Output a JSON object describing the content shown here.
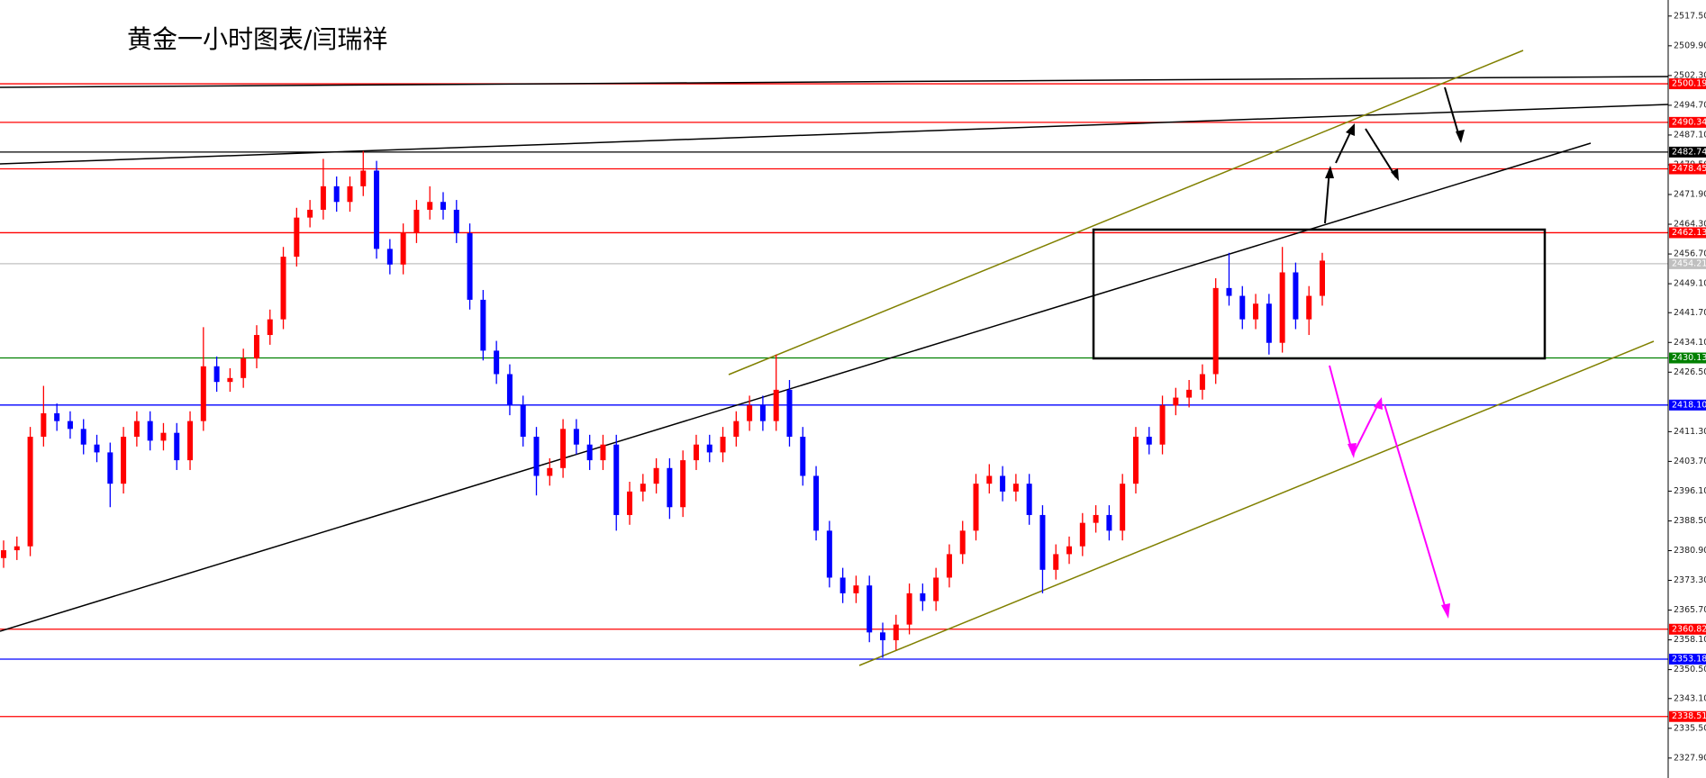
{
  "chart_data": {
    "type": "candlestick",
    "title": "黄金一小时图表/闫瑞祥",
    "up_color": "#ff0000",
    "down_color": "#0000ff",
    "ylim": [
      2322.8,
      2521.6
    ],
    "yticks": [
      {
        "value": 2517.5,
        "label": "2517.50"
      },
      {
        "value": 2509.9,
        "label": "2509.90"
      },
      {
        "value": 2502.3,
        "label": "2502.30"
      },
      {
        "value": 2494.7,
        "label": "2494.70"
      },
      {
        "value": 2487.1,
        "label": "2487.10"
      },
      {
        "value": 2479.5,
        "label": "2479.50"
      },
      {
        "value": 2471.9,
        "label": "2471.90"
      },
      {
        "value": 2464.3,
        "label": "2464.30"
      },
      {
        "value": 2456.7,
        "label": "2456.70"
      },
      {
        "value": 2449.1,
        "label": "2449.10"
      },
      {
        "value": 2441.7,
        "label": "2441.70"
      },
      {
        "value": 2434.1,
        "label": "2434.10"
      },
      {
        "value": 2426.5,
        "label": "2426.50"
      },
      {
        "value": 2411.3,
        "label": "2411.30"
      },
      {
        "value": 2403.7,
        "label": "2403.70"
      },
      {
        "value": 2396.1,
        "label": "2396.10"
      },
      {
        "value": 2388.5,
        "label": "2388.50"
      },
      {
        "value": 2380.9,
        "label": "2380.90"
      },
      {
        "value": 2373.3,
        "label": "2373.30"
      },
      {
        "value": 2365.7,
        "label": "2365.70"
      },
      {
        "value": 2358.1,
        "label": "2358.10"
      },
      {
        "value": 2350.5,
        "label": "2350.50"
      },
      {
        "value": 2343.1,
        "label": "2343.10"
      },
      {
        "value": 2335.5,
        "label": "2335.50"
      },
      {
        "value": 2327.9,
        "label": "2327.90"
      }
    ],
    "levels": [
      {
        "value": 2500.19,
        "label": "2500.19",
        "color": "#ff0000"
      },
      {
        "value": 2490.34,
        "label": "2490.34",
        "color": "#ff0000"
      },
      {
        "value": 2482.74,
        "label": "2482.74",
        "color": "#000000"
      },
      {
        "value": 2478.45,
        "label": "2478.45",
        "color": "#ff0000"
      },
      {
        "value": 2462.13,
        "label": "2462.13",
        "color": "#ff0000"
      },
      {
        "value": 2454.21,
        "label": "2454.21",
        "color": "#c0c0c0"
      },
      {
        "value": 2430.13,
        "label": "2430.13",
        "color": "#008000"
      },
      {
        "value": 2418.1,
        "label": "2418.10",
        "color": "#0000ff"
      },
      {
        "value": 2360.82,
        "label": "2360.82",
        "color": "#ff0000"
      },
      {
        "value": 2353.18,
        "label": "2353.18",
        "color": "#0000ff"
      },
      {
        "value": 2338.51,
        "label": "2338.51",
        "color": "#ff0000"
      }
    ],
    "open": [
      2379,
      2381,
      2382,
      2410,
      2416,
      2414,
      2412,
      2408,
      2406,
      2398,
      2410,
      2414,
      2409,
      2411,
      2404,
      2414,
      2428,
      2424,
      2425,
      2430,
      2436,
      2440,
      2456,
      2466,
      2468,
      2474,
      2470,
      2474,
      2478,
      2458,
      2454,
      2462,
      2468,
      2470,
      2468,
      2462,
      2445,
      2432,
      2426,
      2418,
      2410,
      2400,
      2402,
      2412,
      2408,
      2404,
      2408,
      2390,
      2396,
      2398,
      2402,
      2392,
      2404,
      2408,
      2406,
      2410,
      2414,
      2418,
      2414,
      2422,
      2410,
      2400,
      2386,
      2374,
      2370,
      2372,
      2360,
      2358,
      2362,
      2370,
      2368,
      2374,
      2380,
      2386,
      2398,
      2400,
      2396,
      2398,
      2390,
      2376,
      2380,
      2382,
      2388,
      2390,
      2386,
      2398,
      2410,
      2408,
      2418,
      2420,
      2422,
      2426,
      2448,
      2446,
      2440,
      2444,
      2434,
      2452,
      2440,
      2446
    ],
    "high": [
      2383.5,
      2384.5,
      2412.5,
      2423,
      2418.5,
      2416.5,
      2414.5,
      2410.5,
      2408.5,
      2412.5,
      2416.5,
      2416.5,
      2413.5,
      2413.5,
      2416.5,
      2438,
      2430.5,
      2427.5,
      2432.5,
      2438.5,
      2442.5,
      2458.5,
      2468.5,
      2470.5,
      2481,
      2476.5,
      2476.5,
      2483,
      2480.5,
      2460.5,
      2464.5,
      2470.5,
      2474,
      2472.5,
      2470.5,
      2464.5,
      2447.5,
      2434.5,
      2428.5,
      2420.5,
      2412.5,
      2404.5,
      2414.5,
      2414.5,
      2410.5,
      2410.5,
      2410.5,
      2398.5,
      2400.5,
      2404.5,
      2404.5,
      2406.5,
      2410.5,
      2410.5,
      2412.5,
      2416.5,
      2420.5,
      2420.5,
      2431,
      2424.5,
      2412.5,
      2402.5,
      2388.5,
      2376.5,
      2374.5,
      2374.5,
      2362.5,
      2364.5,
      2372.5,
      2372.5,
      2376.5,
      2382.5,
      2388.5,
      2400.5,
      2403,
      2402.5,
      2400.5,
      2400.5,
      2392.5,
      2382.5,
      2384.5,
      2390.5,
      2392.5,
      2392.5,
      2400.5,
      2412.5,
      2412.5,
      2420.5,
      2422.5,
      2424.5,
      2428.5,
      2450.5,
      2457,
      2448.5,
      2446.5,
      2446.5,
      2458.5,
      2454.5,
      2448.5,
      2457
    ],
    "low": [
      2376.5,
      2378.5,
      2379.5,
      2407.5,
      2411.5,
      2409.5,
      2405.5,
      2403.5,
      2392,
      2395.5,
      2407.5,
      2406.5,
      2406.5,
      2401.5,
      2401.5,
      2411.5,
      2421.5,
      2421.5,
      2422.5,
      2427.5,
      2433.5,
      2437.5,
      2453.5,
      2463.5,
      2465.5,
      2467.5,
      2467.5,
      2471.5,
      2455.5,
      2451.5,
      2451.5,
      2459.5,
      2465.5,
      2465.5,
      2459.5,
      2442.5,
      2429.5,
      2423.5,
      2415.5,
      2407.5,
      2395,
      2397.5,
      2399.5,
      2405.5,
      2401.5,
      2401.5,
      2386,
      2387.5,
      2393.5,
      2395.5,
      2389,
      2389.5,
      2401.5,
      2403.5,
      2403.5,
      2407.5,
      2411.5,
      2411.5,
      2411.5,
      2407.5,
      2397.5,
      2383.5,
      2371.5,
      2367.5,
      2367.5,
      2357.5,
      2353.5,
      2355.5,
      2359.5,
      2365.5,
      2365.5,
      2371.5,
      2377.5,
      2383.5,
      2395.5,
      2393.5,
      2393.5,
      2387.5,
      2370,
      2373.5,
      2377.5,
      2379.5,
      2385.5,
      2383.5,
      2383.5,
      2395.5,
      2405.5,
      2405.5,
      2415.5,
      2417.5,
      2419.5,
      2423.5,
      2443.5,
      2437.5,
      2437.5,
      2431,
      2431.5,
      2437.5,
      2436,
      2443.5
    ],
    "close": [
      2381,
      2382,
      2410,
      2416,
      2414,
      2412,
      2408,
      2406,
      2398,
      2410,
      2414,
      2409,
      2411,
      2404,
      2414,
      2428,
      2424,
      2425,
      2430,
      2436,
      2440,
      2456,
      2466,
      2468,
      2474,
      2470,
      2474,
      2478,
      2458,
      2454,
      2462,
      2468,
      2470,
      2468,
      2462,
      2445,
      2432,
      2426,
      2418,
      2410,
      2400,
      2402,
      2412,
      2408,
      2404,
      2408,
      2390,
      2396,
      2398,
      2402,
      2392,
      2404,
      2408,
      2406,
      2410,
      2414,
      2418,
      2414,
      2422,
      2410,
      2400,
      2386,
      2374,
      2370,
      2372,
      2360,
      2358,
      2362,
      2370,
      2368,
      2374,
      2380,
      2386,
      2398,
      2400,
      2396,
      2398,
      2390,
      2376,
      2380,
      2382,
      2388,
      2390,
      2386,
      2398,
      2410,
      2408,
      2418,
      2420,
      2422,
      2426,
      2448,
      2446,
      2440,
      2444,
      2434,
      2452,
      2440,
      2446,
      2455
    ]
  }
}
